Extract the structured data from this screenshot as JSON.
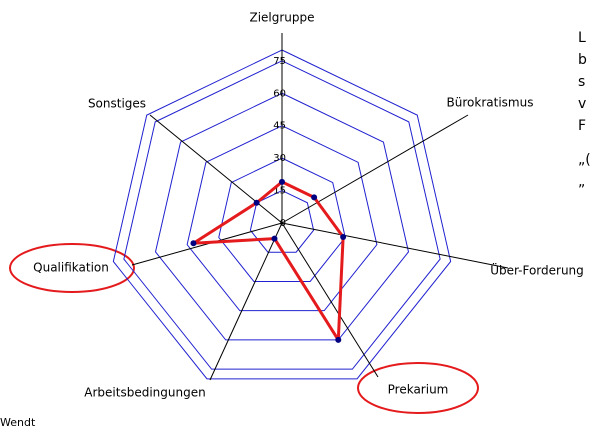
{
  "chart_data": {
    "type": "radar",
    "categories": [
      "Zielgruppe",
      "Bürokratismus",
      "Über-Forderung",
      "Prekarium",
      "Arbeitsbedingungen",
      "Qualifikation",
      "Sonstiges"
    ],
    "values": [
      19,
      19,
      29,
      60,
      8,
      42,
      15
    ],
    "color": "#e41a1c",
    "marker_color": "#000080",
    "grid_color": "#2020d0",
    "rlim": [
      0,
      80
    ],
    "rticks": [
      0,
      15,
      30,
      45,
      60,
      75
    ]
  },
  "side_text": [
    "L",
    "b",
    "s",
    "v",
    "F",
    "„(",
    "„"
  ],
  "footer": "Wendt"
}
